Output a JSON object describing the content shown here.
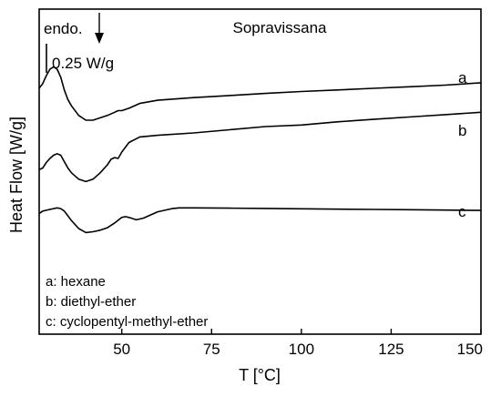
{
  "chart_data": {
    "type": "line",
    "title": "Sopravissana",
    "xlabel": "T [°C]",
    "ylabel": "Heat Flow [W/g]",
    "xlim": [
      27,
      150
    ],
    "xticks": [
      50,
      75,
      100,
      125,
      150
    ],
    "yticks": "none",
    "grid": false,
    "annotations": {
      "endo": "endo.",
      "scale": "0.25 W/g"
    },
    "legend": {
      "placement": "bottom-left",
      "items": [
        "a: hexane",
        "b: diethyl-ether",
        "c: cyclopentyl-methyl-ether"
      ]
    },
    "series": [
      {
        "name": "a",
        "x": [
          27,
          28,
          29,
          30,
          31,
          32,
          33,
          34,
          35,
          36,
          38,
          40,
          42,
          44,
          46,
          48,
          49,
          50,
          52,
          55,
          60,
          70,
          80,
          90,
          100,
          110,
          120,
          130,
          140,
          150
        ],
        "y": [
          0.84,
          0.87,
          0.92,
          0.96,
          0.975,
          0.96,
          0.91,
          0.83,
          0.77,
          0.73,
          0.67,
          0.64,
          0.64,
          0.655,
          0.67,
          0.69,
          0.7,
          0.7,
          0.715,
          0.745,
          0.765,
          0.782,
          0.795,
          0.808,
          0.82,
          0.83,
          0.84,
          0.85,
          0.86,
          0.875
        ]
      },
      {
        "name": "b",
        "x": [
          27,
          28,
          29,
          30,
          31,
          32,
          33,
          34,
          35,
          36,
          38,
          40,
          42,
          44,
          46,
          47,
          48,
          49,
          50,
          52,
          55,
          60,
          70,
          80,
          90,
          100,
          110,
          120,
          130,
          140,
          150
        ],
        "y": [
          0.33,
          0.34,
          0.375,
          0.4,
          0.42,
          0.43,
          0.42,
          0.38,
          0.34,
          0.31,
          0.27,
          0.255,
          0.27,
          0.31,
          0.36,
          0.395,
          0.405,
          0.4,
          0.44,
          0.5,
          0.535,
          0.545,
          0.56,
          0.58,
          0.6,
          0.61,
          0.63,
          0.645,
          0.66,
          0.675,
          0.69
        ]
      },
      {
        "name": "c",
        "x": [
          27,
          28,
          29,
          30,
          31,
          32,
          33,
          34,
          35,
          36,
          38,
          40,
          42,
          44,
          46,
          48,
          50,
          51,
          52,
          54,
          56,
          58,
          60,
          62,
          64,
          66,
          70,
          80,
          90,
          100,
          110,
          120,
          130,
          140,
          150
        ],
        "y": [
          0.055,
          0.07,
          0.075,
          0.08,
          0.085,
          0.09,
          0.085,
          0.07,
          0.04,
          0.01,
          -0.04,
          -0.065,
          -0.06,
          -0.05,
          -0.035,
          -0.005,
          0.03,
          0.035,
          0.03,
          0.015,
          0.025,
          0.045,
          0.065,
          0.075,
          0.085,
          0.09,
          0.09,
          0.088,
          0.086,
          0.084,
          0.082,
          0.08,
          0.078,
          0.076,
          0.074
        ]
      }
    ]
  }
}
